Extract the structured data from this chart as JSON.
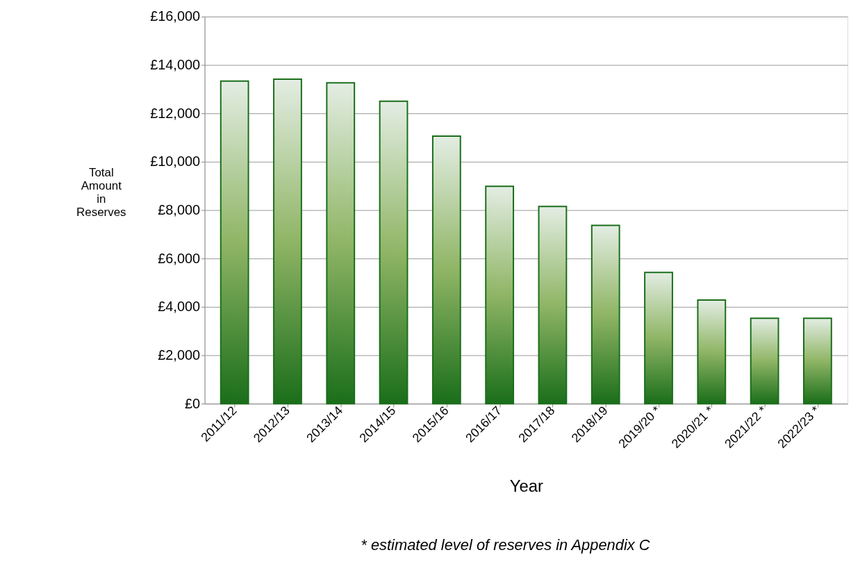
{
  "chart_data": {
    "type": "bar",
    "xlabel": "Year",
    "ylabel": "Total Amount in Reserves",
    "categories": [
      "2011/12",
      "2012/13",
      "2013/14",
      "2014/15",
      "2015/16",
      "2016/17",
      "2017/18",
      "2018/19",
      "2019/20 *",
      "2020/21 *",
      "2021/22 *",
      "2022/23 *"
    ],
    "values": [
      13330,
      13410,
      13260,
      12500,
      11060,
      8980,
      8150,
      7370,
      5420,
      4280,
      3530,
      3530
    ],
    "color": "#1a6e1a",
    "ylim": [
      0,
      16000
    ],
    "yticks": [
      {
        "value": 0,
        "label": "£0"
      },
      {
        "value": 2000,
        "label": "£2,000"
      },
      {
        "value": 4000,
        "label": "£4,000"
      },
      {
        "value": 6000,
        "label": "£6,000"
      },
      {
        "value": 8000,
        "label": "£8,000"
      },
      {
        "value": 10000,
        "label": "£10,000"
      },
      {
        "value": 12000,
        "label": "£12,000"
      },
      {
        "value": 14000,
        "label": "£14,000"
      },
      {
        "value": 16000,
        "label": "£16,000"
      }
    ],
    "grid": "y",
    "annotations": [
      "* estimated level of reserves in Appendix C"
    ]
  }
}
